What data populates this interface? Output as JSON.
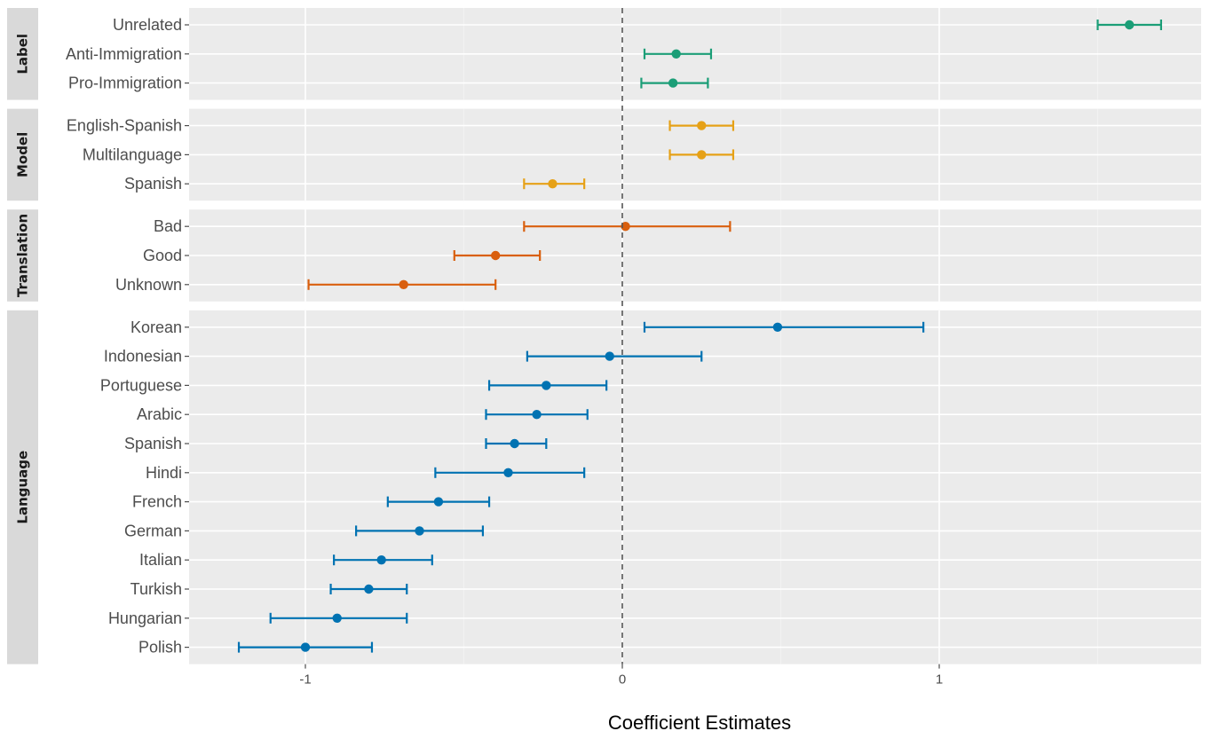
{
  "chart_data": {
    "type": "scatter",
    "subtype": "coefficient-plot-with-error-bars",
    "title": "",
    "xlabel": "Coefficient Estimates",
    "ylabel": "",
    "xlim": [
      -1.4,
      1.8
    ],
    "x_ticks": [
      -1,
      0,
      1
    ],
    "x_tick_labels": [
      "-1",
      "0",
      "1"
    ],
    "reference_line": {
      "x": 0,
      "style": "dashed"
    },
    "grid": true,
    "background": "#ebebeb",
    "legend": "none",
    "panels": [
      {
        "name": "Label",
        "color": "#1b9e77",
        "rows": [
          {
            "label": "Unrelated",
            "estimate": 1.6,
            "lower": 1.5,
            "upper": 1.7
          },
          {
            "label": "Anti-Immigration",
            "estimate": 0.17,
            "lower": 0.07,
            "upper": 0.28
          },
          {
            "label": "Pro-Immigration",
            "estimate": 0.16,
            "lower": 0.06,
            "upper": 0.27
          }
        ]
      },
      {
        "name": "Model",
        "color": "#e6a117",
        "rows": [
          {
            "label": "English-Spanish",
            "estimate": 0.25,
            "lower": 0.15,
            "upper": 0.35
          },
          {
            "label": "Multilanguage",
            "estimate": 0.25,
            "lower": 0.15,
            "upper": 0.35
          },
          {
            "label": "Spanish",
            "estimate": -0.22,
            "lower": -0.31,
            "upper": -0.12
          }
        ]
      },
      {
        "name": "Translation",
        "color": "#d95f0e",
        "rows": [
          {
            "label": "Bad",
            "estimate": 0.01,
            "lower": -0.31,
            "upper": 0.34
          },
          {
            "label": "Good",
            "estimate": -0.4,
            "lower": -0.53,
            "upper": -0.26
          },
          {
            "label": "Unknown",
            "estimate": -0.69,
            "lower": -0.99,
            "upper": -0.4
          }
        ]
      },
      {
        "name": "Language",
        "color": "#0072b2",
        "rows": [
          {
            "label": "Korean",
            "estimate": 0.49,
            "lower": 0.07,
            "upper": 0.95
          },
          {
            "label": "Indonesian",
            "estimate": -0.04,
            "lower": -0.3,
            "upper": 0.25
          },
          {
            "label": "Portuguese",
            "estimate": -0.24,
            "lower": -0.42,
            "upper": -0.05
          },
          {
            "label": "Arabic",
            "estimate": -0.27,
            "lower": -0.43,
            "upper": -0.11
          },
          {
            "label": "Spanish",
            "estimate": -0.34,
            "lower": -0.43,
            "upper": -0.24
          },
          {
            "label": "Hindi",
            "estimate": -0.36,
            "lower": -0.59,
            "upper": -0.12
          },
          {
            "label": "French",
            "estimate": -0.58,
            "lower": -0.74,
            "upper": -0.42
          },
          {
            "label": "German",
            "estimate": -0.64,
            "lower": -0.84,
            "upper": -0.44
          },
          {
            "label": "Italian",
            "estimate": -0.76,
            "lower": -0.91,
            "upper": -0.6
          },
          {
            "label": "Turkish",
            "estimate": -0.8,
            "lower": -0.92,
            "upper": -0.68
          },
          {
            "label": "Hungarian",
            "estimate": -0.9,
            "lower": -1.11,
            "upper": -0.68
          },
          {
            "label": "Polish",
            "estimate": -1.0,
            "lower": -1.21,
            "upper": -0.79
          }
        ]
      }
    ]
  }
}
